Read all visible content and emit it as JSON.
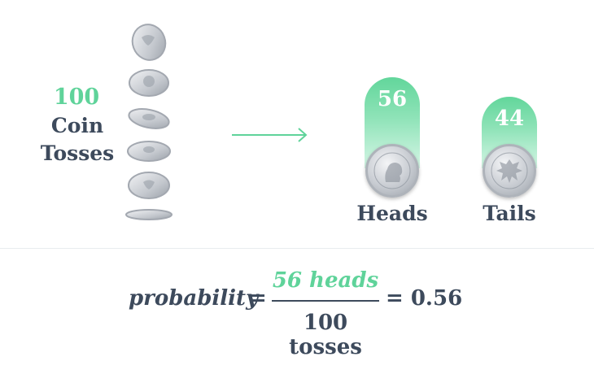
{
  "left": {
    "count": "100",
    "label_line1": "Coin",
    "label_line2": "Tosses"
  },
  "bars": [
    {
      "category": "Heads",
      "value": "56",
      "icon": "heads-coin-icon"
    },
    {
      "category": "Tails",
      "value": "44",
      "icon": "tails-coin-icon"
    }
  ],
  "formula": {
    "lhs": "probability",
    "eq1": "=",
    "numerator": "56 heads",
    "denominator": "100 tosses",
    "eq2": "= 0.56"
  },
  "colors": {
    "accent": "#5fd39a",
    "text": "#3d4a5c"
  }
}
